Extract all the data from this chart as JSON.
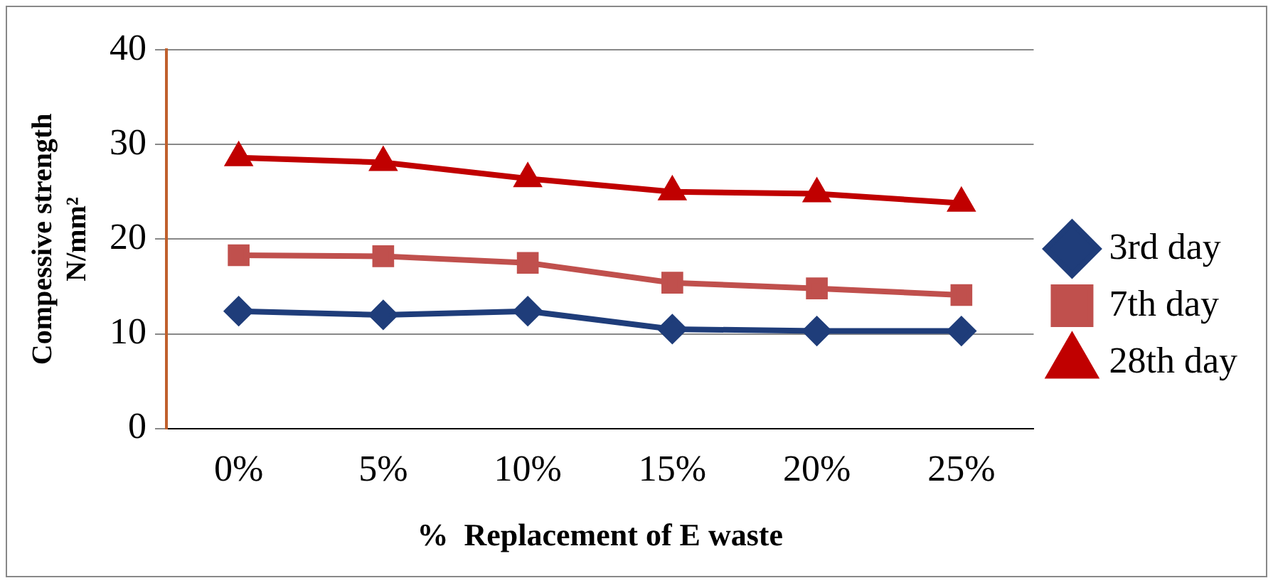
{
  "chart_data": {
    "type": "line",
    "xlabel": "%  Replacement of E waste",
    "ylabel": "Compessive strength\nN/mm²",
    "categories": [
      "0%",
      "5%",
      "10%",
      "15%",
      "20%",
      "25%"
    ],
    "series": [
      {
        "name": "3rd day",
        "color": "#1f3d7a",
        "marker": "diamond",
        "values": [
          12.4,
          12.0,
          12.4,
          10.5,
          10.3,
          10.3
        ]
      },
      {
        "name": "7th day",
        "color": "#c0504d",
        "marker": "square",
        "values": [
          18.3,
          18.2,
          17.5,
          15.4,
          14.8,
          14.1
        ]
      },
      {
        "name": "28th day",
        "color": "#c00000",
        "marker": "triangle",
        "values": [
          28.6,
          28.1,
          26.4,
          25.0,
          24.8,
          23.8
        ]
      }
    ],
    "ylim": [
      0,
      40
    ],
    "yticks": [
      0,
      10,
      20,
      30,
      40
    ],
    "grid": "y",
    "legend": "right"
  }
}
